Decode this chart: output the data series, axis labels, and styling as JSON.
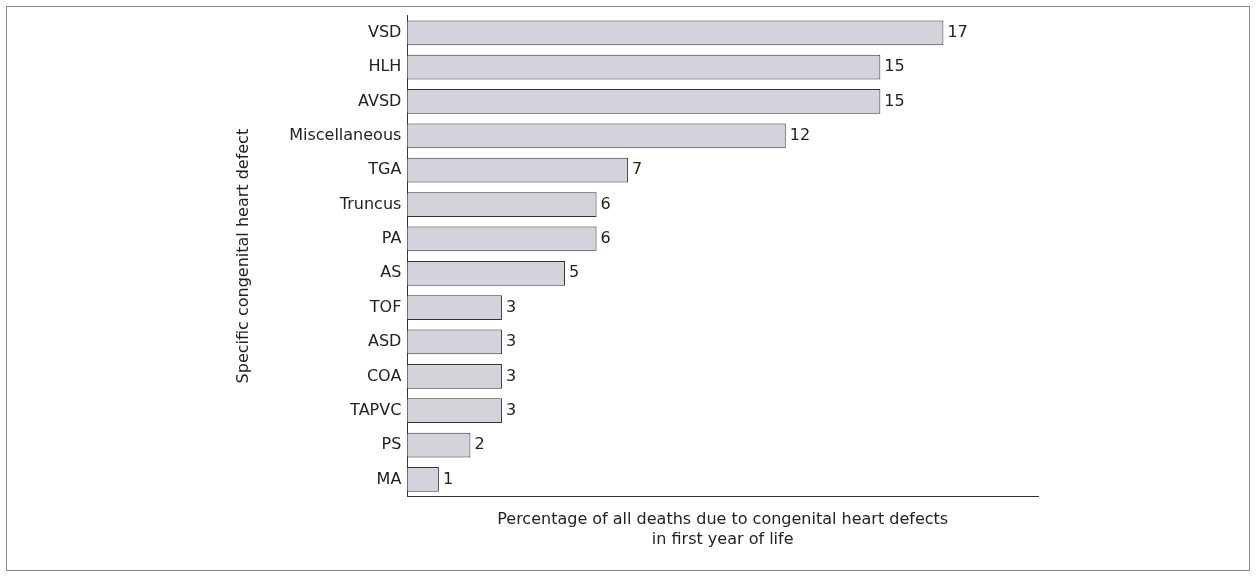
{
  "chart_data": {
    "type": "bar",
    "orientation": "horizontal",
    "categories": [
      "VSD",
      "HLH",
      "AVSD",
      "Miscellaneous",
      "TGA",
      "Truncus",
      "PA",
      "AS",
      "TOF",
      "ASD",
      "COA",
      "TAPVC",
      "PS",
      "MA"
    ],
    "values": [
      17,
      15,
      15,
      12,
      7,
      6,
      6,
      5,
      3,
      3,
      3,
      3,
      2,
      1
    ],
    "color": "#d3d3db",
    "data_labels": true,
    "xlabel": "Percentage of all deaths due to congenital heart defects\nin first year of life",
    "ylabel": "Specific congenital heart defect",
    "grid": false,
    "legend": false
  }
}
